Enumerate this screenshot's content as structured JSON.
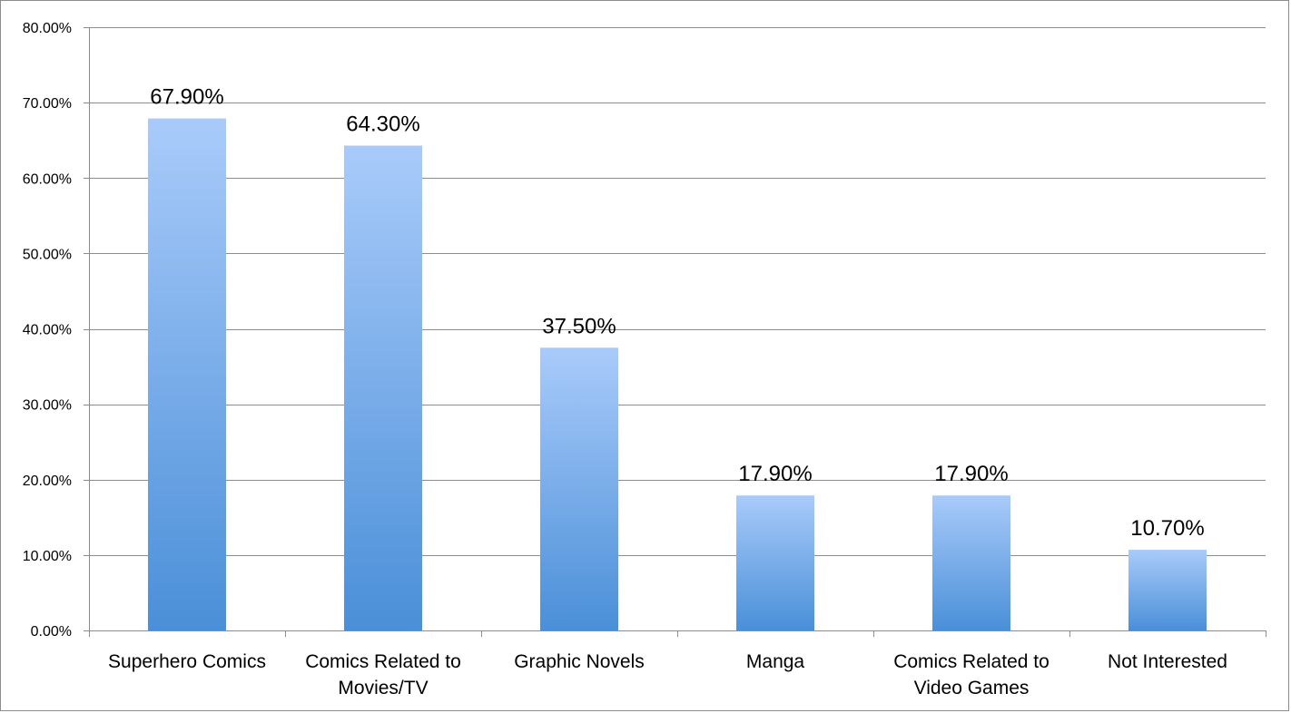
{
  "chart_data": {
    "type": "bar",
    "categories": [
      [
        "Superhero Comics"
      ],
      [
        "Comics Related to",
        "Movies/TV"
      ],
      [
        "Graphic Novels"
      ],
      [
        "Manga"
      ],
      [
        "Comics Related to",
        "Video Games"
      ],
      [
        "Not Interested"
      ]
    ],
    "values": [
      67.9,
      64.3,
      37.5,
      17.9,
      17.9,
      10.7
    ],
    "data_labels": [
      "67.90%",
      "64.30%",
      "37.50%",
      "17.90%",
      "17.90%",
      "10.70%"
    ],
    "y_ticks": [
      0,
      10,
      20,
      30,
      40,
      50,
      60,
      70,
      80
    ],
    "y_tick_labels": [
      "0.00%",
      "10.00%",
      "20.00%",
      "30.00%",
      "40.00%",
      "50.00%",
      "60.00%",
      "70.00%",
      "80.00%"
    ],
    "ylim": [
      0,
      80
    ],
    "grid": true,
    "legend": "none",
    "title": "",
    "xlabel": "",
    "ylabel": "",
    "colors": {
      "bar_top": "#a9cbfa",
      "bar_bottom": "#4a8fd8",
      "grid": "#8c8c8c",
      "axis": "#8c8c8c"
    }
  }
}
